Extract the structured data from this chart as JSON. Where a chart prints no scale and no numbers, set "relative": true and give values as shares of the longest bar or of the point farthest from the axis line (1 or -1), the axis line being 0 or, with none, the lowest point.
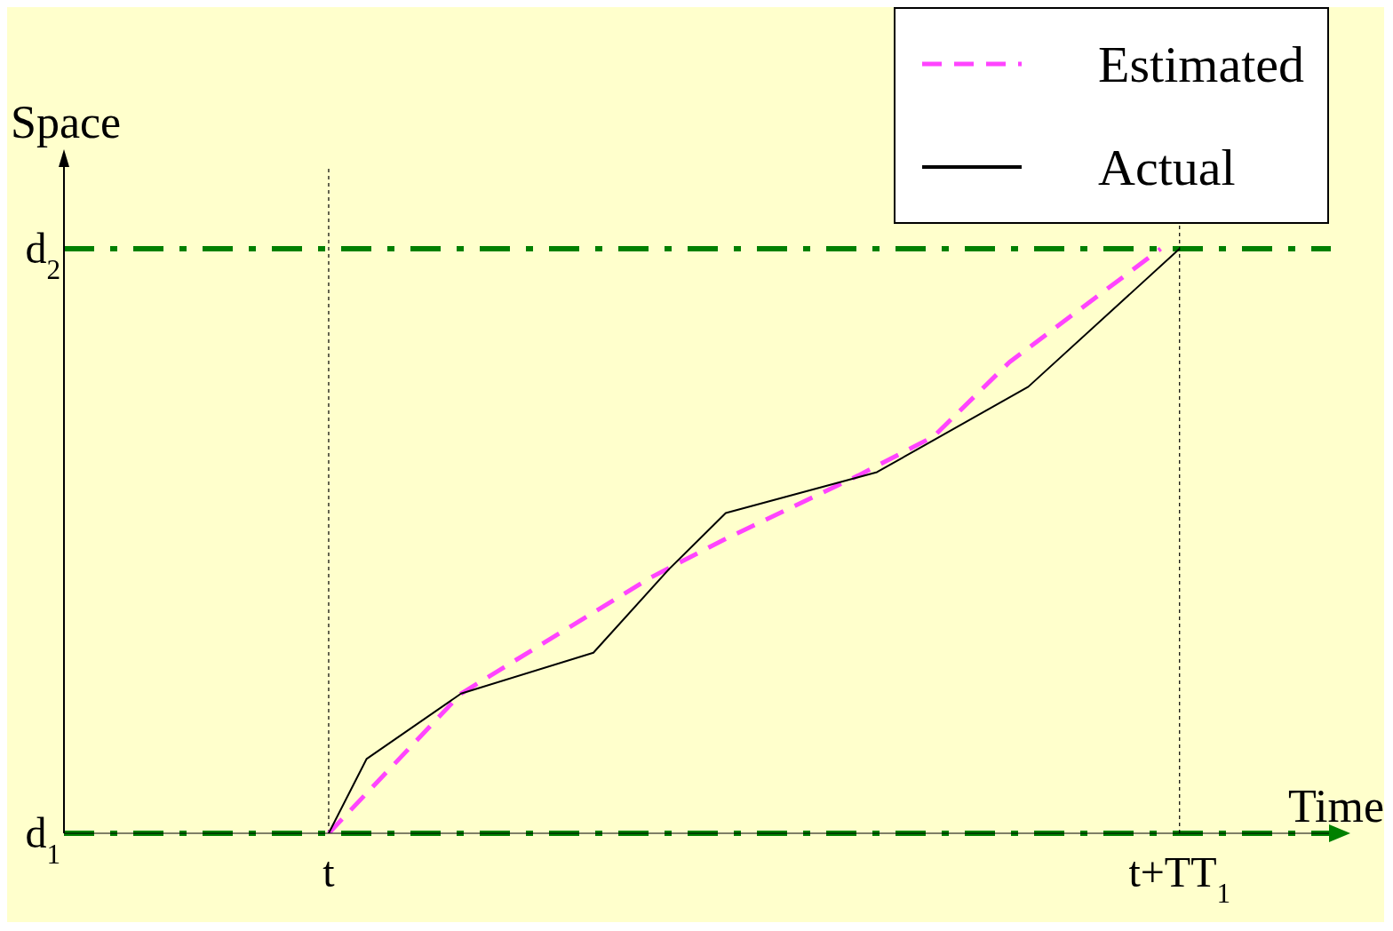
{
  "chart_data": {
    "type": "line",
    "xlabel": "Time",
    "ylabel": "Space",
    "relative": true,
    "categories": [
      null,
      null,
      null,
      null,
      null,
      null,
      null,
      null,
      null,
      null,
      null,
      null,
      null,
      null,
      "t",
      null,
      null,
      null,
      null,
      null,
      null,
      null,
      null,
      null,
      null,
      null,
      null,
      null,
      null,
      null,
      null,
      null,
      null,
      null,
      null,
      null,
      null,
      null,
      null,
      null,
      null,
      null,
      null,
      null,
      null,
      null,
      null,
      null,
      null,
      null,
      null,
      null,
      null,
      null,
      null,
      null,
      null,
      null,
      null,
      "t+TT$_{1}$",
      null,
      null,
      null,
      null,
      null,
      null,
      null,
      null
    ],
    "series": [
      {
        "name": "Estimated",
        "color": "#ff44ff",
        "line_style": "dashed",
        "values": [
          null,
          null,
          null,
          null,
          null,
          null,
          null,
          null,
          null,
          null,
          null,
          null,
          null,
          null,
          0,
          null,
          null,
          null,
          null,
          null,
          null,
          0.239,
          null,
          null,
          null,
          null,
          null,
          null,
          null,
          null,
          null,
          0.437,
          null,
          null,
          null,
          0.504,
          null,
          null,
          null,
          null,
          null,
          null,
          0.612,
          null,
          null,
          null,
          0.679,
          null,
          null,
          null,
          0.806,
          null,
          null,
          null,
          null,
          null,
          null,
          null,
          1,
          null,
          null,
          null,
          null,
          null,
          null,
          null,
          null,
          null
        ]
      },
      {
        "name": "Actual",
        "color": "#000000",
        "line_style": "solid",
        "values": [
          null,
          null,
          null,
          null,
          null,
          null,
          null,
          null,
          null,
          null,
          null,
          null,
          null,
          null,
          0,
          null,
          0.127,
          null,
          null,
          null,
          null,
          0.239,
          null,
          null,
          null,
          null,
          null,
          null,
          0.309,
          null,
          null,
          null,
          0.452,
          null,
          null,
          0.548,
          null,
          null,
          null,
          null,
          null,
          null,
          null,
          0.618,
          null,
          null,
          null,
          null,
          null,
          null,
          null,
          0.764,
          null,
          null,
          null,
          null,
          null,
          null,
          null,
          1,
          null,
          null,
          null,
          null,
          null,
          null,
          null,
          null
        ]
      }
    ],
    "ref_lines": [
      {
        "axis": "y",
        "value": 0,
        "label": "d$_{1}$",
        "color": "#008000",
        "line_style": "dashdot"
      },
      {
        "axis": "y",
        "value": 1,
        "label": "d$_{2}$",
        "color": "#008000",
        "line_style": "dashdot"
      },
      {
        "axis": "x",
        "value": "t",
        "color": "#000000",
        "line_style": "dotted"
      },
      {
        "axis": "x",
        "value": "t+TT$_{1}$",
        "color": "#000000",
        "line_style": "dotted"
      }
    ],
    "marker": "none",
    "grid": false,
    "legend": "top right"
  }
}
